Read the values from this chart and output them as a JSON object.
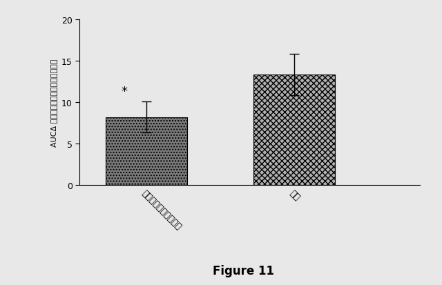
{
  "categories": [
    "細胞および濃縮分泌物",
    "細胞"
  ],
  "values": [
    8.2,
    13.3
  ],
  "errors": [
    1.9,
    2.5
  ],
  "ylim": [
    0,
    20
  ],
  "yticks": [
    0,
    5,
    10,
    15,
    20
  ],
  "ylabel": "AUCΔ 臨床的スコア（スコア・日数）",
  "star_annotation": "*",
  "figure_label": "Figure 11",
  "bar1_hatch": "....",
  "bar2_hatch": "xxxx",
  "bar1_color": "#7a7a7a",
  "bar2_color": "#b0b0b0",
  "background_color": "#e8e8e8",
  "figsize": [
    6.4,
    4.14
  ],
  "dpi": 100
}
